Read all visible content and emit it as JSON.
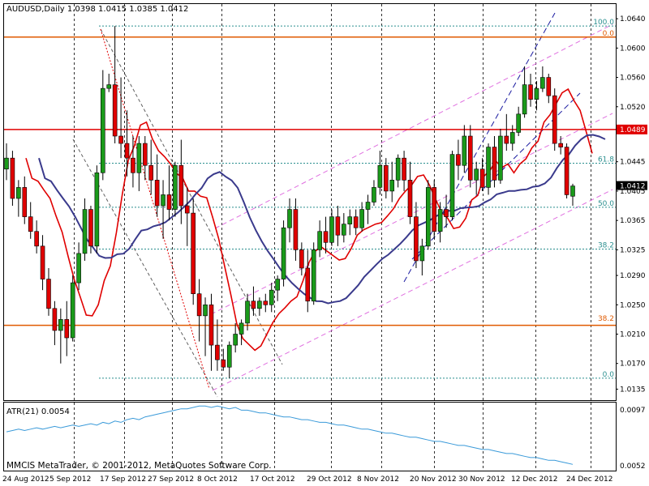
{
  "chart_data": {
    "type": "candlestick",
    "symbol_header": "AUDUSD,Daily  1.0398 1.0415 1.0385 1.0412",
    "price_axis": {
      "ylim": [
        1.012,
        1.066
      ],
      "tick_labels": [
        "1.0640",
        "1.0600",
        "1.0560",
        "1.0520",
        "1.0445",
        "1.0405",
        "1.0365",
        "1.0325",
        "1.0290",
        "1.0250",
        "1.0210",
        "1.0170",
        "1.0135"
      ]
    },
    "date_axis": {
      "tick_labels": [
        "24 Aug 2012",
        "5 Sep 2012",
        "17 Sep 2012",
        "27 Sep 2012",
        "8 Oct 2012",
        "17 Oct 2012",
        "29 Oct 2012",
        "8 Nov 2012",
        "20 Nov 2012",
        "30 Nov 2012",
        "12 Dec 2012",
        "24 Dec 2012"
      ]
    },
    "current_price": "1.0412",
    "horizontal_levels": [
      {
        "price": 1.0615,
        "color": "#e05a00"
      },
      {
        "price": 1.0489,
        "color": "#e00000",
        "label": "1.0489"
      },
      {
        "price": 1.0222,
        "color": "#e05a00"
      }
    ],
    "fib_labels": [
      {
        "text": "100.0",
        "price": 1.063,
        "color": "#2a8f8f"
      },
      {
        "text": "0.0",
        "price": 1.0615,
        "color": "#e05a00"
      },
      {
        "text": "61.8",
        "price": 1.0443,
        "color": "#2a8f8f"
      },
      {
        "text": "50.0",
        "price": 1.0383,
        "color": "#2a8f8f"
      },
      {
        "text": "38.2",
        "price": 1.0326,
        "color": "#2a8f8f"
      },
      {
        "text": "38.2",
        "price": 1.0226,
        "color": "#e05a00"
      },
      {
        "text": "0.0",
        "price": 1.015,
        "color": "#2a8f8f"
      }
    ],
    "candles": [
      [
        1.0435,
        1.047,
        1.042,
        1.045
      ],
      [
        1.045,
        1.046,
        1.0385,
        1.0395
      ],
      [
        1.0395,
        1.042,
        1.037,
        1.041
      ],
      [
        1.041,
        1.0425,
        1.036,
        1.037
      ],
      [
        1.037,
        1.039,
        1.034,
        1.035
      ],
      [
        1.035,
        1.0365,
        1.032,
        1.033
      ],
      [
        1.033,
        1.0345,
        1.027,
        1.0285
      ],
      [
        1.0285,
        1.03,
        1.0235,
        1.0245
      ],
      [
        1.0245,
        1.0255,
        1.0195,
        1.0215
      ],
      [
        1.0215,
        1.0245,
        1.017,
        1.023
      ],
      [
        1.023,
        1.0255,
        1.018,
        1.0205
      ],
      [
        1.0205,
        1.029,
        1.02,
        1.028
      ],
      [
        1.028,
        1.0335,
        1.027,
        1.032
      ],
      [
        1.032,
        1.0395,
        1.031,
        1.038
      ],
      [
        1.038,
        1.0385,
        1.032,
        1.033
      ],
      [
        1.033,
        1.044,
        1.032,
        1.043
      ],
      [
        1.043,
        1.057,
        1.042,
        1.0545
      ],
      [
        1.0545,
        1.0565,
        1.054,
        1.055
      ],
      [
        1.055,
        1.063,
        1.047,
        1.048
      ],
      [
        1.048,
        1.056,
        1.045,
        1.047
      ],
      [
        1.047,
        1.0515,
        1.0425,
        1.045
      ],
      [
        1.045,
        1.048,
        1.041,
        1.043
      ],
      [
        1.043,
        1.048,
        1.0405,
        1.047
      ],
      [
        1.047,
        1.048,
        1.042,
        1.044
      ],
      [
        1.044,
        1.0475,
        1.04,
        1.042
      ],
      [
        1.042,
        1.0455,
        1.037,
        1.0385
      ],
      [
        1.0385,
        1.042,
        1.034,
        1.04
      ],
      [
        1.04,
        1.044,
        1.0365,
        1.038
      ],
      [
        1.038,
        1.0445,
        1.037,
        1.044
      ],
      [
        1.044,
        1.0475,
        1.036,
        1.0385
      ],
      [
        1.0385,
        1.041,
        1.033,
        1.0375
      ],
      [
        1.0375,
        1.0395,
        1.025,
        1.0265
      ],
      [
        1.0265,
        1.0285,
        1.02,
        1.0235
      ],
      [
        1.0235,
        1.026,
        1.018,
        1.025
      ],
      [
        1.025,
        1.0265,
        1.016,
        1.0195
      ],
      [
        1.0195,
        1.023,
        1.016,
        1.0175
      ],
      [
        1.0175,
        1.019,
        1.016,
        1.0165
      ],
      [
        1.0165,
        1.02,
        1.015,
        1.0195
      ],
      [
        1.0195,
        1.0225,
        1.0185,
        1.021
      ],
      [
        1.021,
        1.023,
        1.0195,
        1.0225
      ],
      [
        1.0225,
        1.0265,
        1.0215,
        1.0255
      ],
      [
        1.0255,
        1.0275,
        1.0235,
        1.0245
      ],
      [
        1.0245,
        1.026,
        1.0235,
        1.0255
      ],
      [
        1.0255,
        1.0265,
        1.024,
        1.025
      ],
      [
        1.025,
        1.028,
        1.024,
        1.027
      ],
      [
        1.027,
        1.029,
        1.0255,
        1.0285
      ],
      [
        1.0285,
        1.0365,
        1.0275,
        1.0355
      ],
      [
        1.0355,
        1.0395,
        1.0335,
        1.038
      ],
      [
        1.038,
        1.0395,
        1.031,
        1.0325
      ],
      [
        1.0325,
        1.0335,
        1.029,
        1.03
      ],
      [
        1.03,
        1.0325,
        1.024,
        1.0255
      ],
      [
        1.0255,
        1.0335,
        1.025,
        1.0325
      ],
      [
        1.0325,
        1.0365,
        1.0315,
        1.035
      ],
      [
        1.035,
        1.037,
        1.032,
        1.0335
      ],
      [
        1.0335,
        1.038,
        1.033,
        1.037
      ],
      [
        1.037,
        1.0385,
        1.033,
        1.0345
      ],
      [
        1.0345,
        1.0375,
        1.0335,
        1.036
      ],
      [
        1.036,
        1.038,
        1.0345,
        1.037
      ],
      [
        1.037,
        1.038,
        1.0345,
        1.0355
      ],
      [
        1.0355,
        1.039,
        1.035,
        1.038
      ],
      [
        1.038,
        1.04,
        1.036,
        1.039
      ],
      [
        1.039,
        1.042,
        1.0385,
        1.041
      ],
      [
        1.041,
        1.046,
        1.04,
        1.044
      ],
      [
        1.044,
        1.045,
        1.0395,
        1.0405
      ],
      [
        1.0405,
        1.0445,
        1.039,
        1.042
      ],
      [
        1.042,
        1.0455,
        1.041,
        1.045
      ],
      [
        1.045,
        1.046,
        1.0405,
        1.042
      ],
      [
        1.042,
        1.0445,
        1.036,
        1.037
      ],
      [
        1.037,
        1.039,
        1.03,
        1.031
      ],
      [
        1.031,
        1.034,
        1.029,
        1.033
      ],
      [
        1.033,
        1.042,
        1.0325,
        1.041
      ],
      [
        1.041,
        1.042,
        1.034,
        1.035
      ],
      [
        1.035,
        1.039,
        1.0335,
        1.038
      ],
      [
        1.038,
        1.04,
        1.0355,
        1.037
      ],
      [
        1.037,
        1.046,
        1.0365,
        1.0455
      ],
      [
        1.0455,
        1.0475,
        1.042,
        1.044
      ],
      [
        1.044,
        1.0495,
        1.043,
        1.048
      ],
      [
        1.048,
        1.0495,
        1.041,
        1.042
      ],
      [
        1.042,
        1.0445,
        1.04,
        1.0435
      ],
      [
        1.0435,
        1.045,
        1.0405,
        1.041
      ],
      [
        1.041,
        1.047,
        1.04,
        1.0465
      ],
      [
        1.0465,
        1.048,
        1.041,
        1.042
      ],
      [
        1.042,
        1.049,
        1.0415,
        1.048
      ],
      [
        1.048,
        1.051,
        1.046,
        1.047
      ],
      [
        1.047,
        1.0495,
        1.046,
        1.0485
      ],
      [
        1.0485,
        1.052,
        1.048,
        1.051
      ],
      [
        1.051,
        1.0575,
        1.0505,
        1.055
      ],
      [
        1.055,
        1.0565,
        1.052,
        1.053
      ],
      [
        1.053,
        1.0555,
        1.0515,
        1.0545
      ],
      [
        1.0545,
        1.0575,
        1.054,
        1.056
      ],
      [
        1.056,
        1.0565,
        1.0525,
        1.0535
      ],
      [
        1.0535,
        1.0545,
        1.046,
        1.047
      ],
      [
        1.047,
        1.048,
        1.0455,
        1.0465
      ],
      [
        1.0465,
        1.047,
        1.0395,
        1.04
      ],
      [
        1.0398,
        1.0415,
        1.0385,
        1.0412
      ]
    ],
    "atr_panel": {
      "label": "ATR(21) 0.0054",
      "tick_labels": [
        "0.0097",
        "0.0052"
      ],
      "ylim": [
        0.005,
        0.0099
      ],
      "values": [
        0.0078,
        0.0079,
        0.008,
        0.0079,
        0.008,
        0.0081,
        0.008,
        0.0081,
        0.0082,
        0.0081,
        0.0082,
        0.0083,
        0.0082,
        0.0083,
        0.0084,
        0.0083,
        0.0085,
        0.0084,
        0.0086,
        0.0085,
        0.0087,
        0.0088,
        0.0087,
        0.0089,
        0.009,
        0.0091,
        0.0092,
        0.0093,
        0.0094,
        0.0095,
        0.0095,
        0.0096,
        0.0097,
        0.0097,
        0.0096,
        0.0097,
        0.0096,
        0.0095,
        0.0096,
        0.0094,
        0.0094,
        0.0093,
        0.0092,
        0.0092,
        0.0091,
        0.009,
        0.0089,
        0.0089,
        0.0088,
        0.0087,
        0.0087,
        0.0086,
        0.0085,
        0.0085,
        0.0084,
        0.0083,
        0.0083,
        0.0082,
        0.0081,
        0.008,
        0.008,
        0.0079,
        0.0078,
        0.0077,
        0.0077,
        0.0076,
        0.0075,
        0.0074,
        0.0074,
        0.0073,
        0.0072,
        0.0071,
        0.0071,
        0.007,
        0.0069,
        0.0068,
        0.0068,
        0.0067,
        0.0066,
        0.0065,
        0.0065,
        0.0064,
        0.0063,
        0.0062,
        0.0062,
        0.0061,
        0.006,
        0.0059,
        0.0059,
        0.0058,
        0.0057,
        0.0057,
        0.0056,
        0.0055,
        0.0054
      ]
    },
    "watermark": "MMCIS MetaTrader, © 2001-2012, MetaQuotes Software Corp."
  }
}
